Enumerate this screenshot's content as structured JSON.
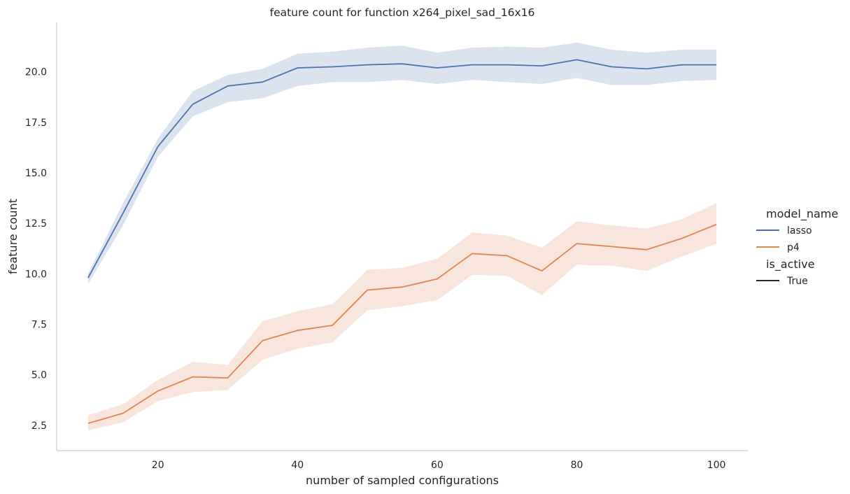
{
  "chart_data": {
    "type": "line",
    "title": "feature count for function x264_pixel_sad_16x16",
    "xlabel": "number of sampled configurations",
    "ylabel": "feature count",
    "xlim": [
      5.5,
      104.5
    ],
    "ylim": [
      1.25,
      22.45
    ],
    "xticks": [
      20,
      40,
      60,
      80,
      100
    ],
    "yticks": [
      2.5,
      5.0,
      7.5,
      10.0,
      12.5,
      15.0,
      17.5,
      20.0
    ],
    "ytick_labels": [
      "2.5",
      "5.0",
      "7.5",
      "10.0",
      "12.5",
      "15.0",
      "17.5",
      "20.0"
    ],
    "grid": false,
    "legend_placement": "right",
    "x": [
      10,
      15,
      20,
      25,
      30,
      35,
      40,
      45,
      50,
      55,
      60,
      65,
      70,
      75,
      80,
      85,
      90,
      95,
      100
    ],
    "series": [
      {
        "name": "lasso",
        "color": "#4c72b0",
        "values": [
          9.8,
          13.0,
          16.3,
          18.4,
          19.3,
          19.5,
          20.2,
          20.25,
          20.35,
          20.4,
          20.2,
          20.35,
          20.35,
          20.3,
          20.6,
          20.25,
          20.15,
          20.35,
          20.35
        ],
        "ci_low": [
          9.5,
          12.4,
          15.8,
          17.8,
          18.5,
          18.7,
          19.3,
          19.5,
          19.5,
          19.6,
          19.4,
          19.6,
          19.5,
          19.4,
          19.7,
          19.35,
          19.35,
          19.55,
          19.6
        ],
        "ci_high": [
          10.0,
          13.5,
          16.7,
          19.05,
          19.85,
          20.15,
          20.9,
          21.0,
          21.2,
          21.3,
          20.95,
          21.2,
          21.25,
          21.2,
          21.45,
          21.1,
          20.95,
          21.1,
          21.1
        ]
      },
      {
        "name": "p4",
        "color": "#dd8452",
        "values": [
          2.6,
          3.1,
          4.2,
          4.9,
          4.85,
          6.7,
          7.2,
          7.45,
          9.2,
          9.35,
          9.75,
          11.0,
          10.9,
          10.15,
          11.5,
          11.35,
          11.2,
          11.75,
          12.45
        ],
        "ci_low": [
          2.25,
          2.65,
          3.7,
          4.15,
          4.25,
          5.75,
          6.3,
          6.6,
          8.2,
          8.4,
          8.7,
          9.95,
          9.9,
          8.95,
          10.45,
          10.4,
          10.15,
          10.85,
          11.5
        ],
        "ci_high": [
          3.0,
          3.55,
          4.75,
          5.65,
          5.5,
          7.65,
          8.15,
          8.5,
          10.2,
          10.3,
          10.75,
          12.05,
          11.9,
          11.3,
          12.6,
          12.4,
          12.25,
          12.7,
          13.5
        ]
      }
    ],
    "legend": {
      "hue_title": "model_name",
      "style_title": "is_active",
      "style_entries": [
        {
          "label": "True",
          "color": "#262626"
        }
      ]
    }
  }
}
